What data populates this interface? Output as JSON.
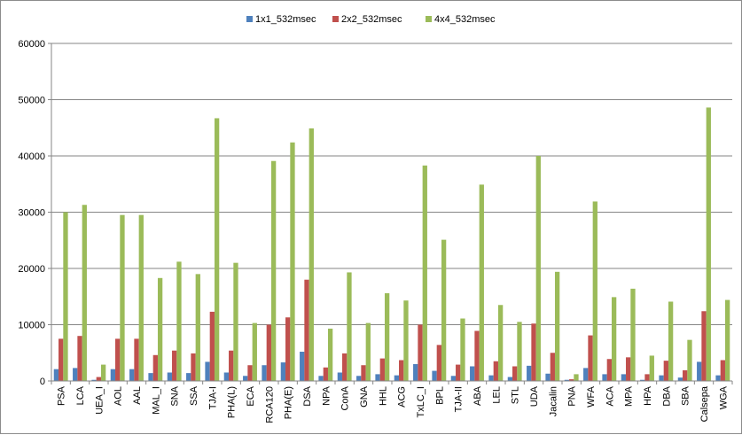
{
  "chart_data": {
    "type": "bar",
    "title": "",
    "xlabel": "",
    "ylabel": "",
    "ylim": [
      0,
      60000
    ],
    "yticks": [
      0,
      10000,
      20000,
      30000,
      40000,
      50000,
      60000
    ],
    "grid": true,
    "legend_position": "top",
    "categories": [
      "PSA",
      "LCA",
      "UEA_I",
      "AOL",
      "AAL",
      "MAL_I",
      "SNA",
      "SSA",
      "TJA-I",
      "PHA(L)",
      "ECA",
      "RCA120",
      "PHA(E)",
      "DSA",
      "NPA",
      "ConA",
      "GNA",
      "HHL",
      "ACG",
      "TxLC_I",
      "BPL",
      "TJA-II",
      "ABA",
      "LEL",
      "STL",
      "UDA",
      "Jacalin",
      "PNA",
      "WFA",
      "ACA",
      "MPA",
      "HPA",
      "DBA",
      "SBA",
      "Calsepa",
      "WGA"
    ],
    "series": [
      {
        "name": "1x1_532msec",
        "color": "#4f81bd",
        "values": [
          2100,
          2300,
          200,
          2100,
          2100,
          1400,
          1500,
          1400,
          3400,
          1500,
          900,
          2800,
          3300,
          5200,
          900,
          1500,
          900,
          1200,
          1000,
          3000,
          1800,
          900,
          2600,
          1000,
          700,
          2700,
          1300,
          200,
          2300,
          1200,
          1200,
          200,
          1000,
          600,
          3400,
          1000
        ]
      },
      {
        "name": "2x2_532msec",
        "color": "#c0504d",
        "values": [
          7500,
          8000,
          700,
          7500,
          7500,
          4600,
          5400,
          4900,
          12300,
          5400,
          2800,
          10000,
          11300,
          18000,
          2400,
          4900,
          2800,
          4000,
          3700,
          10000,
          6400,
          2900,
          8900,
          3500,
          2600,
          10200,
          5000,
          300,
          8100,
          3900,
          4200,
          1200,
          3600,
          1900,
          12400,
          3700
        ]
      },
      {
        "name": "4x4_532msec",
        "color": "#9bbb59",
        "values": [
          30000,
          31300,
          2900,
          29500,
          29500,
          18300,
          21200,
          19000,
          46700,
          21000,
          10300,
          39100,
          42400,
          44900,
          9300,
          19300,
          10300,
          15600,
          14300,
          38300,
          25100,
          11100,
          34900,
          13500,
          10500,
          40000,
          19400,
          1200,
          31900,
          14900,
          16400,
          4500,
          14100,
          7300,
          48600,
          14400
        ]
      }
    ]
  }
}
